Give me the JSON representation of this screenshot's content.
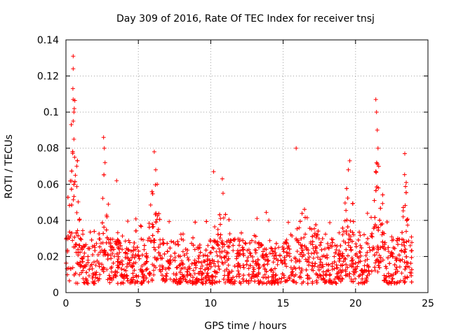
{
  "chart_data": {
    "type": "scatter",
    "title": "Day 309 of 2016, Rate Of TEC Index for receiver tnsj",
    "xlabel": "GPS time / hours",
    "ylabel": "ROTI / TECUs",
    "xlim": [
      0,
      25
    ],
    "ylim": [
      0,
      0.14
    ],
    "x_ticks": [
      0,
      5,
      10,
      15,
      20,
      25
    ],
    "x_tick_labels": [
      "0",
      "5",
      "10",
      "15",
      "20",
      "25"
    ],
    "y_ticks": [
      0,
      0.02,
      0.04,
      0.06,
      0.08,
      0.1,
      0.12,
      0.14
    ],
    "y_tick_labels": [
      "0",
      "0.02",
      "0.04",
      "0.06",
      "0.08",
      "0.1",
      "0.12",
      "0.14"
    ],
    "grid": true,
    "marker": "+",
    "color": "#ff0000",
    "series": [
      {
        "name": "ROTI",
        "notable_points": [
          {
            "x": 0.5,
            "y": 0.131
          },
          {
            "x": 0.5,
            "y": 0.124
          },
          {
            "x": 0.48,
            "y": 0.113
          },
          {
            "x": 0.5,
            "y": 0.107
          },
          {
            "x": 0.55,
            "y": 0.1
          },
          {
            "x": 0.5,
            "y": 0.095
          },
          {
            "x": 0.55,
            "y": 0.085
          },
          {
            "x": 0.6,
            "y": 0.075
          },
          {
            "x": 0.65,
            "y": 0.065
          },
          {
            "x": 2.6,
            "y": 0.086
          },
          {
            "x": 2.65,
            "y": 0.08
          },
          {
            "x": 2.7,
            "y": 0.072
          },
          {
            "x": 3.5,
            "y": 0.062
          },
          {
            "x": 6.1,
            "y": 0.078
          },
          {
            "x": 6.2,
            "y": 0.068
          },
          {
            "x": 6.3,
            "y": 0.06
          },
          {
            "x": 10.2,
            "y": 0.067
          },
          {
            "x": 10.8,
            "y": 0.063
          },
          {
            "x": 10.85,
            "y": 0.055
          },
          {
            "x": 15.9,
            "y": 0.08
          },
          {
            "x": 19.6,
            "y": 0.073
          },
          {
            "x": 19.5,
            "y": 0.068
          },
          {
            "x": 21.4,
            "y": 0.107
          },
          {
            "x": 21.45,
            "y": 0.1
          },
          {
            "x": 21.5,
            "y": 0.09
          },
          {
            "x": 21.55,
            "y": 0.08
          },
          {
            "x": 21.6,
            "y": 0.07
          },
          {
            "x": 23.4,
            "y": 0.077
          },
          {
            "x": 23.5,
            "y": 0.061
          }
        ],
        "baseline_range": [
          0.005,
          0.03
        ],
        "peak_windows": [
          {
            "center": 0.55,
            "width": 0.35,
            "amp": 0.095
          },
          {
            "center": 2.65,
            "width": 0.25,
            "amp": 0.055
          },
          {
            "center": 6.15,
            "width": 0.35,
            "amp": 0.05
          },
          {
            "center": 10.8,
            "width": 0.3,
            "amp": 0.035
          },
          {
            "center": 16.5,
            "width": 0.8,
            "amp": 0.025
          },
          {
            "center": 19.5,
            "width": 0.4,
            "amp": 0.04
          },
          {
            "center": 21.5,
            "width": 0.4,
            "amp": 0.07
          },
          {
            "center": 23.4,
            "width": 0.25,
            "amp": 0.045
          }
        ]
      }
    ]
  }
}
